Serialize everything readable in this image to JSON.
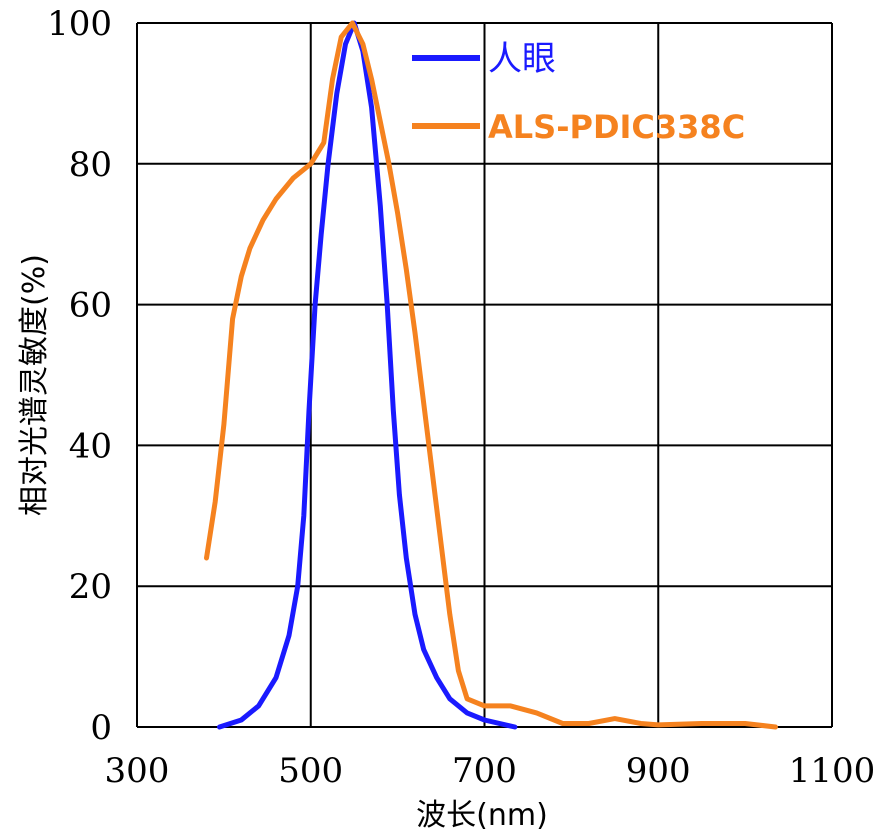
{
  "chart_data": {
    "type": "line",
    "title": "",
    "xlabel": "波长(nm)",
    "ylabel": "相对光谱灵敏度(%)",
    "xlim": [
      300,
      1100
    ],
    "ylim": [
      0,
      100
    ],
    "xticks": [
      "300",
      "500",
      "700",
      "900",
      "1100"
    ],
    "yticks": [
      "0",
      "20",
      "40",
      "60",
      "80",
      "100"
    ],
    "grid": true,
    "legend": "top-right",
    "series": [
      {
        "name": "人眼",
        "color": "#1a1aff",
        "points": [
          [
            395,
            0
          ],
          [
            420,
            1
          ],
          [
            440,
            3
          ],
          [
            460,
            7
          ],
          [
            475,
            13
          ],
          [
            485,
            20
          ],
          [
            492,
            30
          ],
          [
            498,
            45
          ],
          [
            505,
            60
          ],
          [
            512,
            70
          ],
          [
            520,
            80
          ],
          [
            530,
            90
          ],
          [
            540,
            97
          ],
          [
            550,
            100
          ],
          [
            560,
            96
          ],
          [
            570,
            88
          ],
          [
            580,
            74
          ],
          [
            588,
            60
          ],
          [
            595,
            45
          ],
          [
            602,
            33
          ],
          [
            610,
            24
          ],
          [
            620,
            16
          ],
          [
            630,
            11
          ],
          [
            645,
            7
          ],
          [
            660,
            4
          ],
          [
            680,
            2
          ],
          [
            700,
            1
          ],
          [
            735,
            0
          ]
        ]
      },
      {
        "name": "ALS-PDIC338C",
        "color": "#f5821f",
        "points": [
          [
            380,
            24
          ],
          [
            390,
            32
          ],
          [
            400,
            43
          ],
          [
            410,
            58
          ],
          [
            420,
            64
          ],
          [
            430,
            68
          ],
          [
            445,
            72
          ],
          [
            460,
            75
          ],
          [
            480,
            78
          ],
          [
            500,
            80
          ],
          [
            515,
            83
          ],
          [
            525,
            92
          ],
          [
            535,
            98
          ],
          [
            548,
            100
          ],
          [
            560,
            97
          ],
          [
            570,
            92
          ],
          [
            580,
            86
          ],
          [
            590,
            80
          ],
          [
            600,
            73
          ],
          [
            610,
            65
          ],
          [
            620,
            56
          ],
          [
            630,
            46
          ],
          [
            640,
            36
          ],
          [
            650,
            26
          ],
          [
            660,
            16
          ],
          [
            670,
            8
          ],
          [
            680,
            4
          ],
          [
            700,
            3
          ],
          [
            730,
            3
          ],
          [
            760,
            2
          ],
          [
            790,
            0.5
          ],
          [
            820,
            0.5
          ],
          [
            850,
            1.2
          ],
          [
            880,
            0.5
          ],
          [
            900,
            0.3
          ],
          [
            950,
            0.5
          ],
          [
            1000,
            0.5
          ],
          [
            1035,
            0
          ]
        ]
      }
    ]
  }
}
